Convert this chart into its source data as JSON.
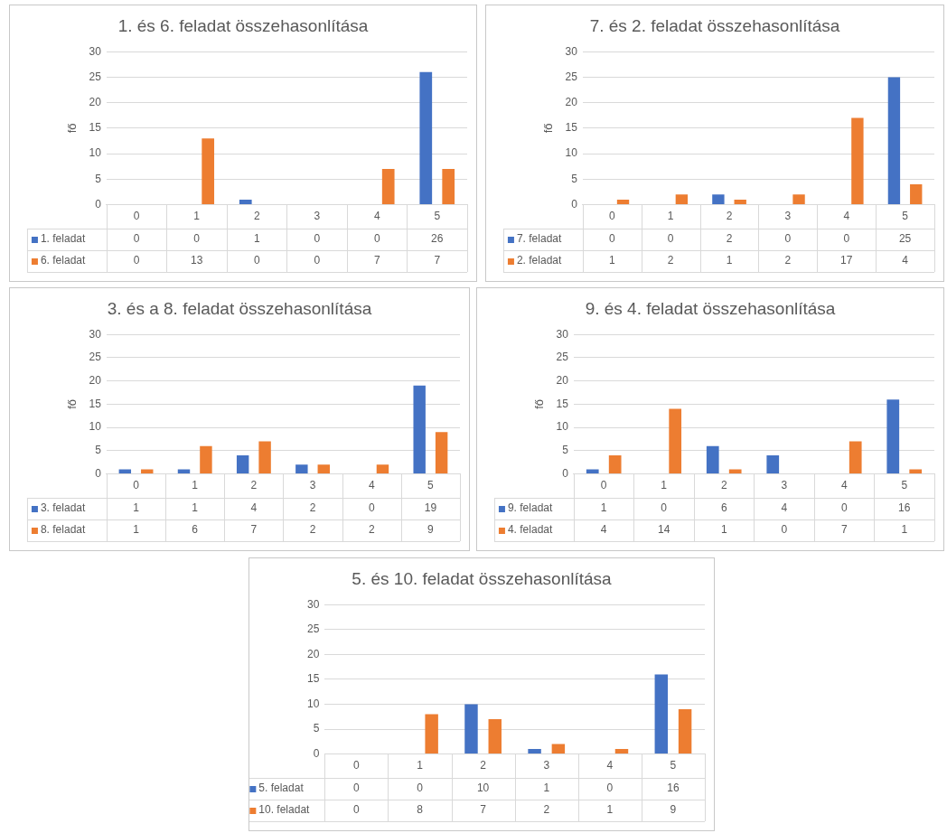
{
  "chart_data": [
    {
      "type": "bar",
      "title": "1. és 6. feladat összehasonlítása",
      "ylabel": "fő",
      "categories": [
        "0",
        "1",
        "2",
        "3",
        "4",
        "5"
      ],
      "series": [
        {
          "name": "1. feladat",
          "color": "#4472c4",
          "values": [
            0,
            0,
            1,
            0,
            0,
            26
          ]
        },
        {
          "name": "6. feladat",
          "color": "#ed7d31",
          "values": [
            0,
            13,
            0,
            0,
            7,
            7
          ]
        }
      ],
      "ylim": [
        0,
        30
      ],
      "yticks": [
        0,
        5,
        10,
        15,
        20,
        25,
        30
      ],
      "grid": "y",
      "legend": "bottom",
      "data_labels": true
    },
    {
      "type": "bar",
      "title": "7. és 2. feladat összehasonlítása",
      "ylabel": "fő",
      "categories": [
        "0",
        "1",
        "2",
        "3",
        "4",
        "5"
      ],
      "series": [
        {
          "name": "7. feladat",
          "color": "#4472c4",
          "values": [
            0,
            0,
            2,
            0,
            0,
            25
          ]
        },
        {
          "name": "2. feladat",
          "color": "#ed7d31",
          "values": [
            1,
            2,
            1,
            2,
            17,
            4
          ]
        }
      ],
      "ylim": [
        0,
        30
      ],
      "yticks": [
        0,
        5,
        10,
        15,
        20,
        25,
        30
      ],
      "grid": "y",
      "legend": "bottom",
      "data_labels": true
    },
    {
      "type": "bar",
      "title": "3. és a 8. feladat összehasonlítása",
      "ylabel": "fő",
      "categories": [
        "0",
        "1",
        "2",
        "3",
        "4",
        "5"
      ],
      "series": [
        {
          "name": "3. feladat",
          "color": "#4472c4",
          "values": [
            1,
            1,
            4,
            2,
            0,
            19
          ]
        },
        {
          "name": "8. feladat",
          "color": "#ed7d31",
          "values": [
            1,
            6,
            7,
            2,
            2,
            9
          ]
        }
      ],
      "ylim": [
        0,
        30
      ],
      "yticks": [
        0,
        5,
        10,
        15,
        20,
        25,
        30
      ],
      "grid": "y",
      "legend": "bottom",
      "data_labels": true
    },
    {
      "type": "bar",
      "title": "9. és 4. feladat összehasonlítása",
      "ylabel": "fő",
      "categories": [
        "0",
        "1",
        "2",
        "3",
        "4",
        "5"
      ],
      "series": [
        {
          "name": "9. feladat",
          "color": "#4472c4",
          "values": [
            1,
            0,
            6,
            4,
            0,
            16
          ]
        },
        {
          "name": "4. feladat",
          "color": "#ed7d31",
          "values": [
            4,
            14,
            1,
            0,
            7,
            1
          ]
        }
      ],
      "ylim": [
        0,
        30
      ],
      "yticks": [
        0,
        5,
        10,
        15,
        20,
        25,
        30
      ],
      "grid": "y",
      "legend": "bottom",
      "data_labels": true
    },
    {
      "type": "bar",
      "title": "5. és 10. feladat összehasonlítása",
      "categories": [
        "0",
        "1",
        "2",
        "3",
        "4",
        "5"
      ],
      "series": [
        {
          "name": "5. feladat",
          "color": "#4472c4",
          "values": [
            0,
            0,
            10,
            1,
            0,
            16
          ]
        },
        {
          "name": "10. feladat",
          "color": "#ed7d31",
          "values": [
            0,
            8,
            7,
            2,
            1,
            9
          ]
        }
      ],
      "ylim": [
        0,
        30
      ],
      "yticks": [
        0,
        5,
        10,
        15,
        20,
        25,
        30
      ],
      "grid": "y",
      "legend": "bottom",
      "data_labels": true
    }
  ]
}
